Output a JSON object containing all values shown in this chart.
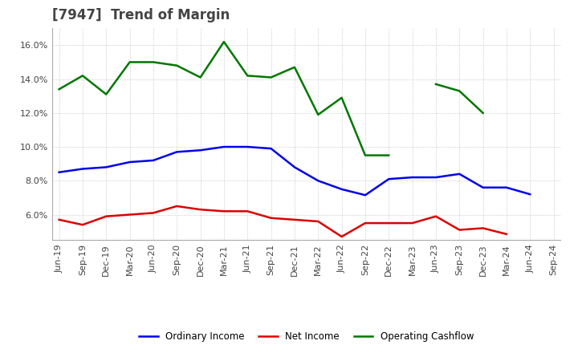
{
  "title": "[7947]  Trend of Margin",
  "x_labels": [
    "Jun-19",
    "Sep-19",
    "Dec-19",
    "Mar-20",
    "Jun-20",
    "Sep-20",
    "Dec-20",
    "Mar-21",
    "Jun-21",
    "Sep-21",
    "Dec-21",
    "Mar-22",
    "Jun-22",
    "Sep-22",
    "Dec-22",
    "Mar-23",
    "Jun-23",
    "Sep-23",
    "Dec-23",
    "Mar-24",
    "Jun-24",
    "Sep-24"
  ],
  "ordinary_income": [
    8.5,
    8.7,
    8.8,
    9.1,
    9.2,
    9.7,
    9.8,
    10.0,
    10.0,
    9.9,
    8.8,
    8.0,
    7.5,
    7.15,
    8.1,
    8.2,
    8.2,
    8.4,
    7.6,
    7.6,
    7.2,
    null
  ],
  "net_income": [
    5.7,
    5.4,
    5.9,
    6.0,
    6.1,
    6.5,
    6.3,
    6.2,
    6.2,
    5.8,
    5.7,
    5.6,
    4.7,
    5.5,
    5.5,
    5.5,
    5.9,
    5.1,
    5.2,
    4.85,
    null,
    null
  ],
  "operating_cashflow": [
    13.4,
    14.2,
    13.1,
    15.0,
    15.0,
    14.8,
    14.1,
    16.2,
    14.2,
    14.1,
    14.7,
    11.9,
    12.9,
    9.5,
    9.5,
    null,
    13.7,
    13.3,
    12.0,
    null,
    null,
    null
  ],
  "ylim": [
    4.5,
    17.0
  ],
  "yticks": [
    6.0,
    8.0,
    10.0,
    12.0,
    14.0,
    16.0
  ],
  "colors": {
    "ordinary_income": "#0000EE",
    "net_income": "#DD0000",
    "operating_cashflow": "#007700"
  },
  "background_color": "#FFFFFF",
  "grid_color": "#BBBBBB",
  "title_color": "#444444",
  "title_fontsize": 12,
  "tick_fontsize": 8,
  "legend_labels": [
    "Ordinary Income",
    "Net Income",
    "Operating Cashflow"
  ]
}
